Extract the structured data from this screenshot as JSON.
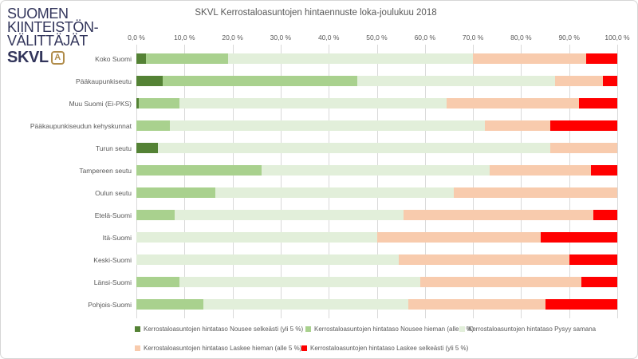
{
  "logo": {
    "line1": "SUOMEN",
    "line2": "KIINTEISTÖN-",
    "line3": "VÄLITTÄJÄT",
    "brand": "SKVL",
    "icon": "A",
    "brand_color": "#32355b",
    "icon_color": "#b08c4a"
  },
  "chart_data": {
    "type": "bar",
    "orientation": "horizontal-stacked",
    "title": "SKVL Kerrostaloasuntojen hintaennuste loka-joulukuu 2018",
    "xlabel": "",
    "ylabel": "",
    "xlim": [
      0,
      100
    ],
    "grid": true,
    "legend_position": "bottom",
    "x_ticks": [
      "0,0 %",
      "10,0 %",
      "20,0 %",
      "30,0 %",
      "40,0 %",
      "50,0 %",
      "60,0 %",
      "70,0 %",
      "80,0 %",
      "90,0 %",
      "100,0 %"
    ],
    "categories": [
      "Koko Suomi",
      "Pääkaupunkiseutu",
      "Muu Suomi (Ei-PKS)",
      "Pääkaupunkiseudun kehyskunnat",
      "Turun seutu",
      "Tampereen seutu",
      "Oulun seutu",
      "Etelä-Suomi",
      "Itä-Suomi",
      "Keski-Suomi",
      "Länsi-Suomi",
      "Pohjois-Suomi"
    ],
    "series": [
      {
        "name": "Kerrostaloasuntojen hintataso Nousee selkeästi (yli 5 %)",
        "color": "#548235",
        "values": [
          2,
          5.5,
          0.5,
          0,
          4.5,
          0,
          0,
          0,
          0,
          0,
          0,
          0
        ]
      },
      {
        "name": "Kerrostaloasuntojen hintataso Nousee hieman (alle 5 %)",
        "color": "#a9d18e",
        "values": [
          17,
          40.5,
          8.5,
          7,
          0,
          26,
          16.5,
          8,
          0,
          0,
          9,
          14
        ]
      },
      {
        "name": "Kerrostaloasuntojen hintataso Pysyy samana",
        "color": "#e2efda",
        "values": [
          51,
          41,
          55.5,
          65.5,
          81.5,
          47.5,
          49.5,
          47.5,
          50,
          54.5,
          50,
          42.5
        ]
      },
      {
        "name": "Kerrostaloasuntojen hintataso Laskee hieman (alle 5 %)",
        "color": "#f8cbad",
        "values": [
          23.5,
          10,
          27.5,
          13.5,
          14,
          21,
          34,
          39.5,
          34,
          35.5,
          33.5,
          28.5
        ]
      },
      {
        "name": "Kerrostaloasuntojen hintataso Laskee selkeästi (yli 5 %)",
        "color": "#ff0000",
        "values": [
          6.5,
          3,
          8,
          14,
          0,
          5.5,
          0,
          5,
          16,
          10,
          7.5,
          15
        ]
      }
    ]
  }
}
